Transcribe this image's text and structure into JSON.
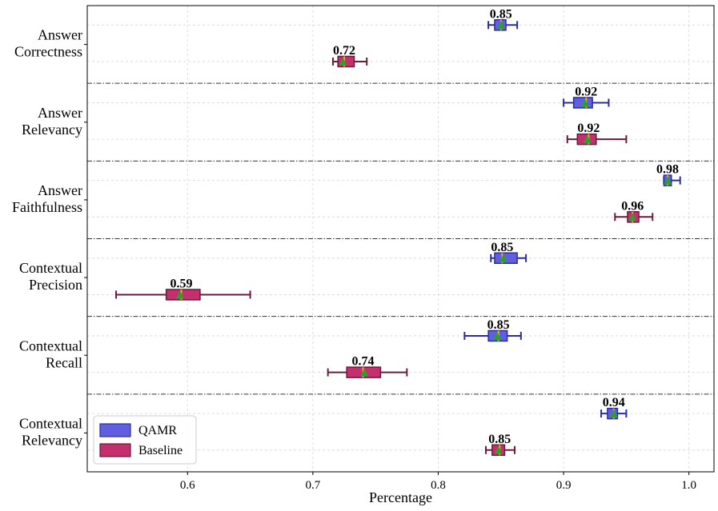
{
  "chart_data": {
    "type": "boxplot",
    "orientation": "horizontal",
    "xlabel": "Percentage",
    "xlim": [
      0.52,
      1.02
    ],
    "xticks": [
      "0.6",
      "0.7",
      "0.8",
      "0.9",
      "1.0"
    ],
    "grid": true,
    "legend_position": "bottom-left",
    "colors": {
      "QAMR": "#5f5fe0",
      "Baseline": "#c4306e"
    },
    "edge_colors": {
      "QAMR": "#2b2ba0",
      "Baseline": "#6a1a3a"
    },
    "series": [
      {
        "name": "QAMR"
      },
      {
        "name": "Baseline"
      }
    ],
    "categories": [
      {
        "label_lines": [
          "Answer",
          "Correctness"
        ],
        "boxes": [
          {
            "series": "QAMR",
            "min": 0.84,
            "q1": 0.845,
            "median": 0.85,
            "q3": 0.854,
            "max": 0.863,
            "mean": 0.85,
            "label": "0.85"
          },
          {
            "series": "Baseline",
            "min": 0.716,
            "q1": 0.72,
            "median": 0.725,
            "q3": 0.733,
            "max": 0.743,
            "mean": 0.724,
            "label": "0.72"
          }
        ]
      },
      {
        "label_lines": [
          "Answer",
          "Relevancy"
        ],
        "boxes": [
          {
            "series": "QAMR",
            "min": 0.9,
            "q1": 0.908,
            "median": 0.918,
            "q3": 0.923,
            "max": 0.936,
            "mean": 0.917,
            "label": "0.92"
          },
          {
            "series": "Baseline",
            "min": 0.903,
            "q1": 0.911,
            "median": 0.92,
            "q3": 0.926,
            "max": 0.95,
            "mean": 0.919,
            "label": "0.92"
          }
        ]
      },
      {
        "label_lines": [
          "Answer",
          "Faithfulness"
        ],
        "boxes": [
          {
            "series": "QAMR",
            "min": 0.98,
            "q1": 0.98,
            "median": 0.983,
            "q3": 0.986,
            "max": 0.993,
            "mean": 0.983,
            "label": "0.98"
          },
          {
            "series": "Baseline",
            "min": 0.941,
            "q1": 0.951,
            "median": 0.955,
            "q3": 0.96,
            "max": 0.971,
            "mean": 0.955,
            "label": "0.96"
          }
        ]
      },
      {
        "label_lines": [
          "Contextual",
          "Precision"
        ],
        "boxes": [
          {
            "series": "QAMR",
            "min": 0.842,
            "q1": 0.845,
            "median": 0.851,
            "q3": 0.863,
            "max": 0.87,
            "mean": 0.852,
            "label": "0.85"
          },
          {
            "series": "Baseline",
            "min": 0.543,
            "q1": 0.583,
            "median": 0.595,
            "q3": 0.61,
            "max": 0.65,
            "mean": 0.594,
            "label": "0.59"
          }
        ]
      },
      {
        "label_lines": [
          "Contextual",
          "Recall"
        ],
        "boxes": [
          {
            "series": "QAMR",
            "min": 0.821,
            "q1": 0.84,
            "median": 0.848,
            "q3": 0.855,
            "max": 0.866,
            "mean": 0.847,
            "label": "0.85"
          },
          {
            "series": "Baseline",
            "min": 0.712,
            "q1": 0.727,
            "median": 0.74,
            "q3": 0.754,
            "max": 0.775,
            "mean": 0.741,
            "label": "0.74"
          }
        ]
      },
      {
        "label_lines": [
          "Contextual",
          "Relevancy"
        ],
        "boxes": [
          {
            "series": "QAMR",
            "min": 0.93,
            "q1": 0.935,
            "median": 0.94,
            "q3": 0.943,
            "max": 0.95,
            "mean": 0.94,
            "label": "0.94"
          },
          {
            "series": "Baseline",
            "min": 0.838,
            "q1": 0.843,
            "median": 0.849,
            "q3": 0.853,
            "max": 0.861,
            "mean": 0.848,
            "label": "0.85"
          }
        ]
      }
    ]
  }
}
